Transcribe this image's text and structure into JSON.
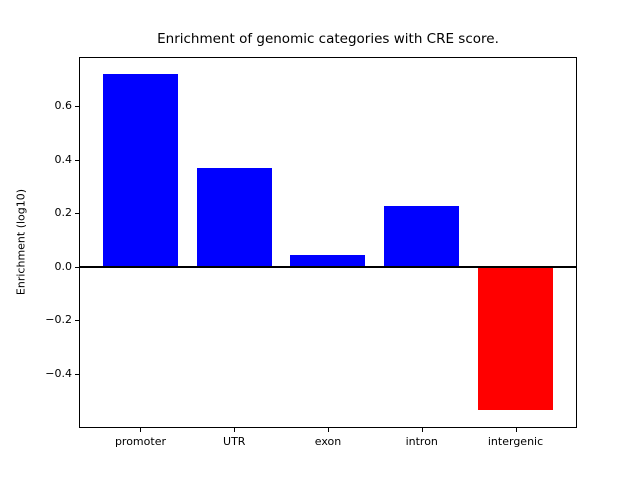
{
  "chart_data": {
    "type": "bar",
    "title": "Enrichment of genomic categories with CRE score.",
    "xlabel": "",
    "ylabel": "Enrichment (log10)",
    "categories": [
      "promoter",
      "UTR",
      "exon",
      "intron",
      "intergenic"
    ],
    "values": [
      0.72,
      0.37,
      0.045,
      0.225,
      -0.535
    ],
    "bar_colors": [
      "#0000ff",
      "#0000ff",
      "#0000ff",
      "#0000ff",
      "#ff0000"
    ],
    "positive_color": "#0000ff",
    "negative_color": "#ff0000",
    "frame_color": "#000000",
    "background_color": "#ffffff",
    "ylim": [
      -0.6,
      0.78
    ],
    "xlim": [
      -0.645,
      4.645
    ],
    "bar_width": 0.8,
    "yticks": [
      {
        "value": 0.6,
        "label": "0.6"
      },
      {
        "value": 0.4,
        "label": "0.4"
      },
      {
        "value": 0.2,
        "label": "0.2"
      },
      {
        "value": 0.0,
        "label": "0.0"
      },
      {
        "value": -0.2,
        "label": "−0.2"
      },
      {
        "value": -0.4,
        "label": "−0.4"
      }
    ],
    "zero_line": true,
    "grid": false
  }
}
